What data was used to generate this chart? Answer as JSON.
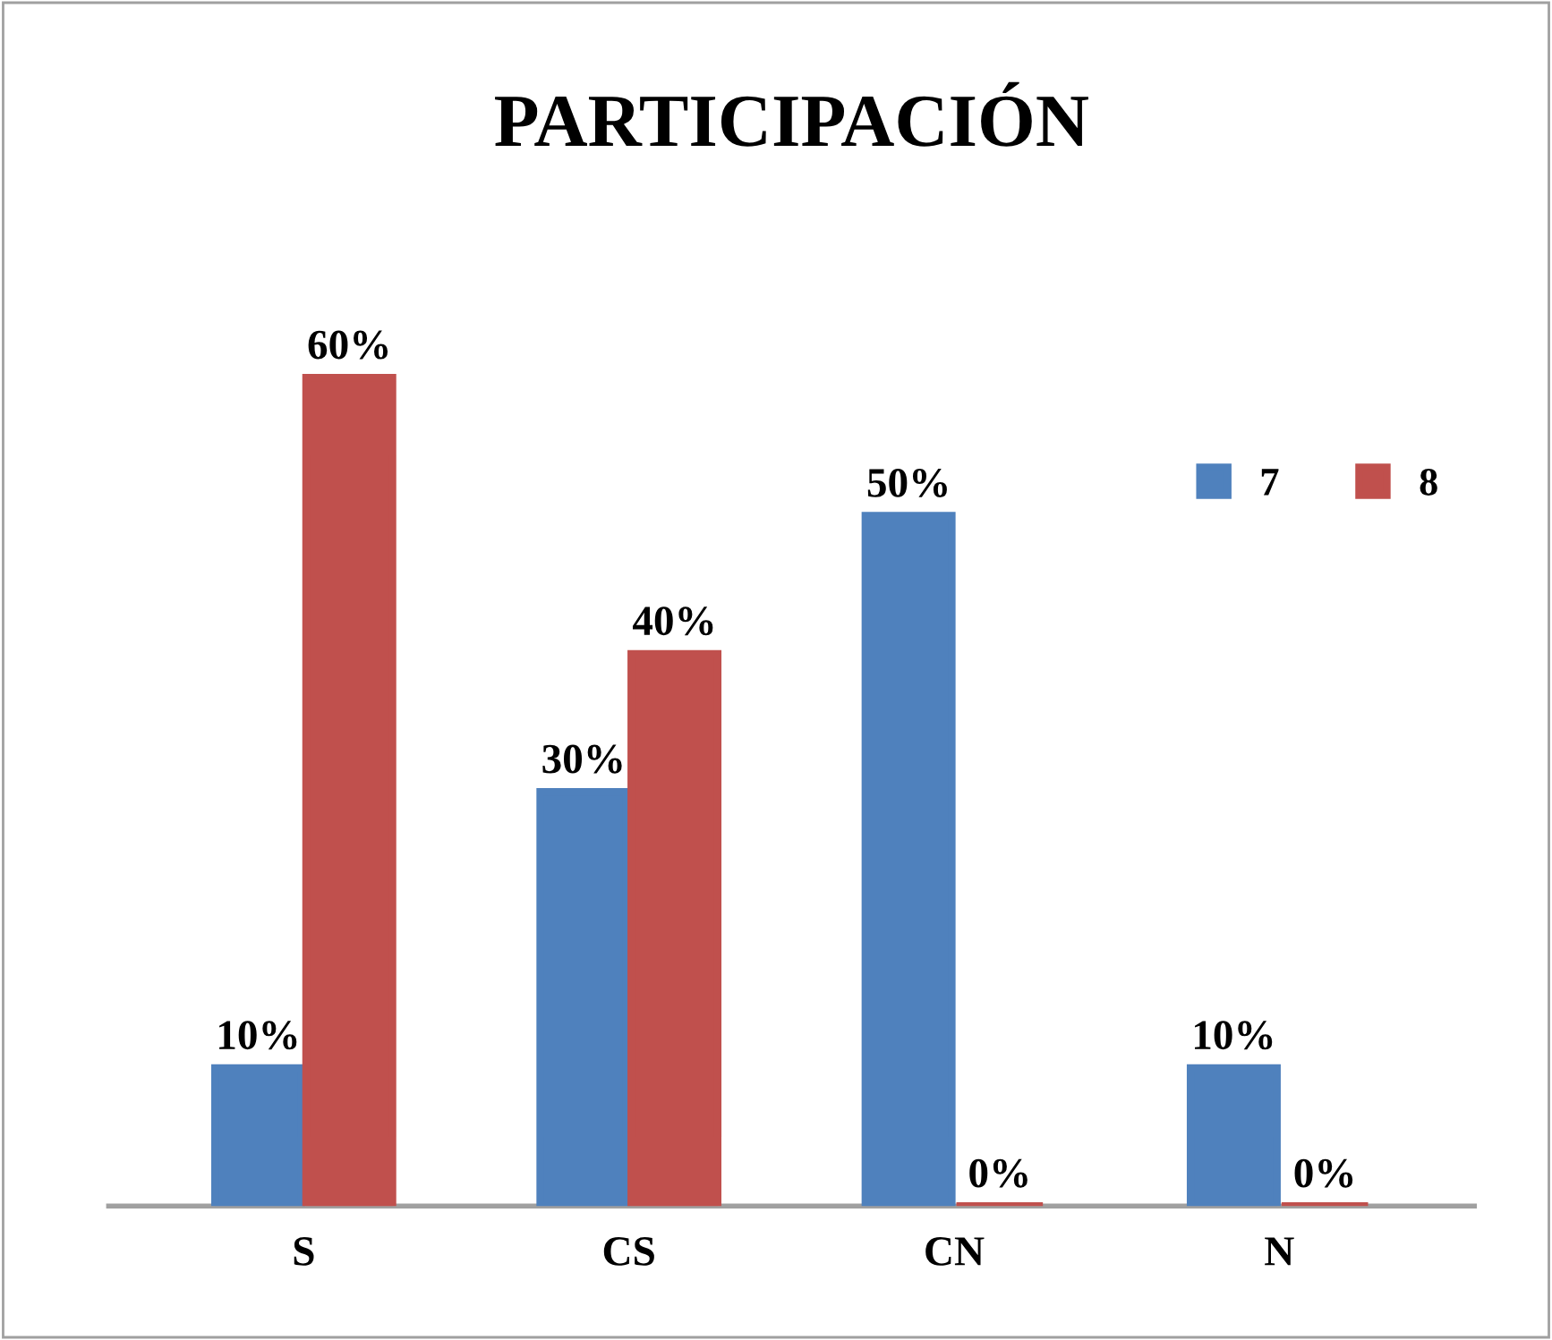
{
  "chart_data": {
    "type": "bar",
    "title": "PARTICIPACIÓN",
    "categories": [
      "S",
      "CS",
      "CN",
      "N"
    ],
    "series": [
      {
        "name": "7",
        "color": "#4f81bd",
        "values": [
          10,
          30,
          50,
          10
        ],
        "value_labels": [
          "10%",
          "30%",
          "50%",
          "10%"
        ]
      },
      {
        "name": "8",
        "color": "#c0504d",
        "values": [
          60,
          40,
          0,
          0
        ],
        "value_labels": [
          "60%",
          "40%",
          "0%",
          "0%"
        ]
      }
    ],
    "legend": "top right",
    "grid": false
  }
}
